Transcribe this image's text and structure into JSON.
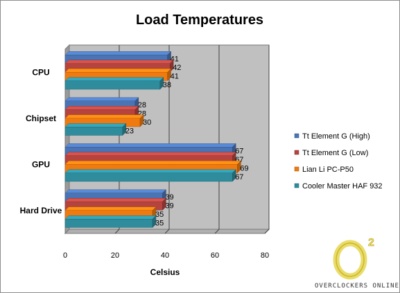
{
  "chart_data": {
    "type": "bar",
    "orientation": "horizontal",
    "title": "Load Temperatures",
    "xlabel": "Celsius",
    "ylabel": "",
    "xlim": [
      0,
      80
    ],
    "xticks": [
      0,
      20,
      40,
      60,
      80
    ],
    "grid": true,
    "legend_position": "right",
    "categories": [
      "CPU",
      "Chipset",
      "GPU",
      "Hard Drive"
    ],
    "series": [
      {
        "name": "Tt Element G (High)",
        "color": "#4a74b4",
        "values": [
          41,
          28,
          67,
          39
        ]
      },
      {
        "name": "Tt Element G (Low)",
        "color": "#b5443f",
        "values": [
          42,
          28,
          67,
          39
        ]
      },
      {
        "name": "Lian Li PC-P50",
        "color": "#f07a10",
        "values": [
          41,
          30,
          69,
          35
        ]
      },
      {
        "name": "Cooler Master HAF 932",
        "color": "#2e8c9c",
        "values": [
          38,
          23,
          67,
          35
        ]
      }
    ]
  },
  "watermark": {
    "logo_text": "O",
    "logo_superscript": "2",
    "caption": "OVERCLOCKERS ONLINE"
  },
  "colors": {
    "plot_background": "#c0c0c0",
    "plot_side": "#9a9a9a",
    "gridline": "#404040"
  }
}
